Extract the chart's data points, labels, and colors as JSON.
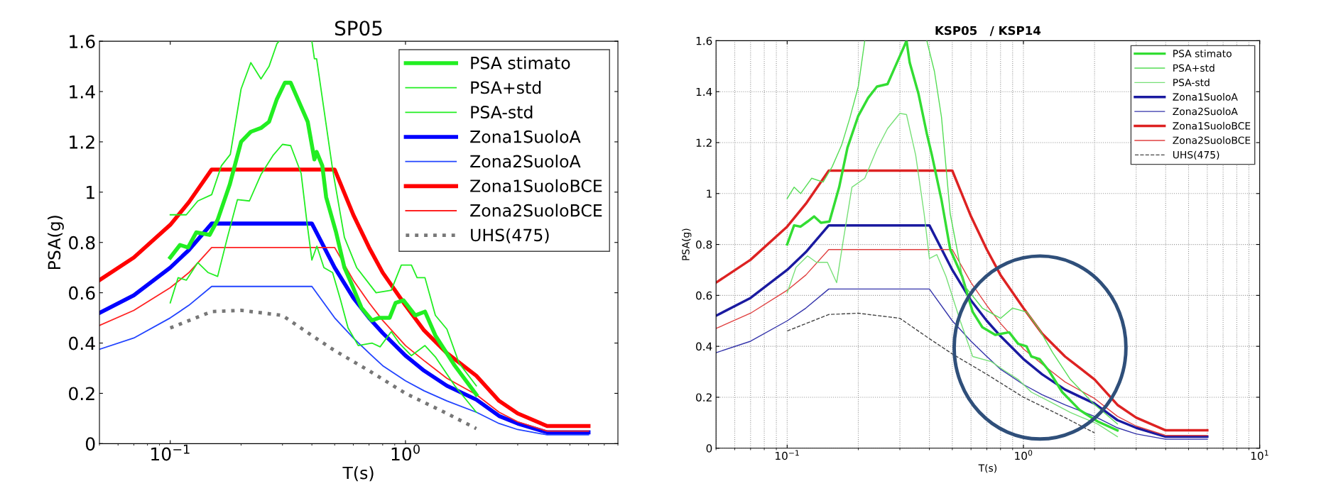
{
  "chart_data": [
    {
      "type": "line",
      "title": "SP05",
      "xlabel": "T(s)",
      "ylabel": "PSA(g)",
      "log": "x",
      "xlim": [
        0.05,
        8
      ],
      "ylim": [
        0,
        1.6
      ],
      "xticks": [
        {
          "value": 0.1,
          "label": "10$^{−1}$"
        },
        {
          "value": 1,
          "label": "10$^{0}$"
        }
      ],
      "yticks": [
        0,
        0.2,
        0.4,
        0.6,
        0.8,
        1,
        1.2,
        1.4,
        1.6
      ],
      "grid": false,
      "legend": "top right",
      "series": [
        {
          "name": "PSA stimato",
          "color": "#22ee22",
          "x": [
            0.1,
            0.11,
            0.119,
            0.129,
            0.147,
            0.159,
            0.179,
            0.2,
            0.22,
            0.243,
            0.263,
            0.284,
            0.307,
            0.325,
            0.36,
            0.384,
            0.41,
            0.419,
            0.443,
            0.46,
            0.507,
            0.55,
            0.59,
            0.65,
            0.72,
            0.77,
            0.856,
            0.908,
            0.98,
            1.1,
            1.21,
            1.34,
            1.62,
            2.0
          ],
          "values": [
            0.74,
            0.79,
            0.78,
            0.84,
            0.83,
            0.89,
            1.03,
            1.2,
            1.24,
            1.255,
            1.28,
            1.37,
            1.435,
            1.435,
            1.34,
            1.28,
            1.13,
            1.16,
            1.105,
            0.98,
            0.84,
            0.7,
            0.635,
            0.54,
            0.49,
            0.5,
            0.5,
            0.56,
            0.57,
            0.51,
            0.525,
            0.43,
            0.31,
            0.195
          ]
        },
        {
          "name": "PSA+std",
          "color": "#22ee22",
          "x": [
            0.1,
            0.117,
            0.131,
            0.15,
            0.165,
            0.18,
            0.2,
            0.22,
            0.243,
            0.263,
            0.284,
            0.29,
            0.35,
            0.4,
            0.41,
            0.419,
            0.45,
            0.49,
            0.55,
            0.62,
            0.75,
            0.87,
            0.96,
            1.06,
            1.12,
            1.21,
            1.34,
            1.5,
            1.69,
            2.0
          ],
          "values": [
            0.91,
            0.91,
            0.965,
            0.99,
            1.105,
            1.15,
            1.41,
            1.515,
            1.45,
            1.5,
            1.59,
            1.6,
            null,
            1.6,
            1.53,
            1.53,
            1.33,
            1.09,
            0.82,
            0.7,
            0.6,
            0.61,
            0.71,
            0.71,
            0.66,
            0.66,
            0.51,
            0.455,
            0.32,
            0.23
          ]
        },
        {
          "name": "PSA-std",
          "color": "#22ee22",
          "x": [
            0.1,
            0.108,
            0.117,
            0.131,
            0.145,
            0.159,
            0.175,
            0.193,
            0.217,
            0.243,
            0.273,
            0.3,
            0.325,
            0.36,
            0.38,
            0.4,
            0.42,
            0.45,
            0.49,
            0.53,
            0.57,
            0.63,
            0.72,
            0.78,
            0.87,
            0.94,
            1.06,
            1.21,
            1.34,
            1.62,
            2.0
          ],
          "values": [
            0.56,
            0.66,
            0.65,
            0.72,
            0.68,
            0.665,
            0.82,
            0.97,
            0.965,
            1.07,
            1.145,
            1.19,
            1.185,
            1.075,
            0.89,
            0.73,
            0.785,
            0.7,
            0.68,
            0.57,
            0.46,
            0.39,
            0.4,
            0.385,
            0.445,
            0.4,
            0.35,
            0.39,
            0.345,
            0.23,
            0.125
          ]
        },
        {
          "name": "Zona1SuoloA",
          "color": "#0000ff",
          "x": [
            0.05,
            0.07,
            0.1,
            0.12,
            0.15,
            0.4,
            0.5,
            0.6,
            0.7,
            0.8,
            1,
            1.2,
            1.5,
            2,
            2.5,
            3,
            4,
            6
          ],
          "values": [
            0.52,
            0.59,
            0.7,
            0.77,
            0.875,
            0.875,
            0.7,
            0.58,
            0.5,
            0.44,
            0.35,
            0.29,
            0.23,
            0.175,
            0.11,
            0.08,
            0.045,
            0.045
          ]
        },
        {
          "name": "Zona2SuoloA",
          "color": "#2244ff",
          "x": [
            0.05,
            0.07,
            0.1,
            0.12,
            0.15,
            0.4,
            0.5,
            0.6,
            0.7,
            0.8,
            1,
            1.2,
            1.5,
            2,
            2.5,
            3,
            4,
            6
          ],
          "values": [
            0.375,
            0.42,
            0.5,
            0.55,
            0.625,
            0.625,
            0.5,
            0.42,
            0.36,
            0.31,
            0.25,
            0.21,
            0.17,
            0.125,
            0.08,
            0.056,
            0.035,
            0.035
          ]
        },
        {
          "name": "Zona1SuoloBCE",
          "color": "#ff0000",
          "x": [
            0.05,
            0.07,
            0.1,
            0.12,
            0.15,
            0.5,
            0.6,
            0.7,
            0.8,
            1,
            1.2,
            1.5,
            2,
            2.5,
            3,
            4,
            6
          ],
          "values": [
            0.65,
            0.74,
            0.87,
            0.96,
            1.09,
            1.09,
            0.91,
            0.78,
            0.68,
            0.55,
            0.45,
            0.36,
            0.27,
            0.17,
            0.12,
            0.07,
            0.07
          ]
        },
        {
          "name": "Zona2SuoloBCE",
          "color": "#ff2222",
          "x": [
            0.05,
            0.07,
            0.1,
            0.12,
            0.15,
            0.5,
            0.6,
            0.7,
            0.8,
            1,
            1.2,
            1.5,
            2,
            2.5,
            3,
            4,
            6
          ],
          "values": [
            0.47,
            0.53,
            0.62,
            0.68,
            0.78,
            0.78,
            0.65,
            0.56,
            0.49,
            0.39,
            0.33,
            0.26,
            0.195,
            0.125,
            0.087,
            0.05,
            0.05
          ]
        },
        {
          "name": "UHS(475)",
          "color": "#777777",
          "line_style": "dotted",
          "x": [
            0.1,
            0.15,
            0.2,
            0.3,
            0.4,
            0.5,
            0.7,
            1,
            1.5,
            2
          ],
          "values": [
            0.46,
            0.525,
            0.53,
            0.51,
            0.43,
            0.37,
            0.29,
            0.2,
            0.12,
            0.06
          ]
        }
      ]
    },
    {
      "type": "line",
      "title": "KSP05   / KSP14",
      "xlabel": "T(s)",
      "ylabel": "PSA(g)",
      "log": "x",
      "xlim": [
        0.05,
        10
      ],
      "ylim": [
        0,
        1.6
      ],
      "xticks": [
        {
          "value": 0.1,
          "label": "10$^{−1}$"
        },
        {
          "value": 1,
          "label": "10$^{0}$"
        },
        {
          "value": 10,
          "label": "10$^{1}$"
        }
      ],
      "yticks": [
        0,
        0.2,
        0.4,
        0.6,
        0.8,
        1,
        1.2,
        1.4,
        1.6
      ],
      "grid": true,
      "legend": "top right",
      "series": [
        {
          "name": "PSA stimato",
          "color": "#33dd33",
          "x": [
            0.1,
            0.107,
            0.114,
            0.122,
            0.13,
            0.139,
            0.151,
            0.166,
            0.18,
            0.2,
            0.22,
            0.24,
            0.266,
            0.284,
            0.31,
            0.32,
            0.33,
            0.36,
            0.39,
            0.41,
            0.45,
            0.49,
            0.55,
            0.61,
            0.67,
            0.76,
            0.87,
            0.95,
            1.03,
            1.08,
            1.17,
            1.28,
            1.46,
            1.73,
            2.06,
            2.5
          ],
          "values": [
            0.8,
            0.875,
            0.87,
            0.89,
            0.91,
            0.885,
            0.89,
            1.025,
            1.18,
            1.305,
            1.375,
            1.42,
            1.43,
            1.49,
            1.57,
            1.6,
            1.515,
            1.39,
            1.235,
            1.15,
            0.975,
            0.78,
            0.675,
            0.535,
            0.475,
            0.445,
            0.455,
            0.41,
            0.4,
            0.36,
            0.35,
            0.305,
            0.22,
            0.15,
            0.105,
            0.07
          ]
        },
        {
          "name": "PSA+std",
          "color": "#55dd55",
          "x": [
            0.1,
            0.107,
            0.114,
            0.127,
            0.142,
            0.155,
            0.17,
            0.184,
            0.2,
            0.213,
            0.3,
            0.39,
            0.42,
            0.45,
            0.49,
            0.56,
            0.67,
            0.8,
            0.9,
            1.03,
            1.17,
            1.33,
            1.58,
            1.98,
            2.5
          ],
          "values": [
            0.98,
            1.025,
            1.0,
            1.06,
            1.045,
            1.105,
            1.19,
            1.295,
            1.42,
            1.6,
            null,
            1.6,
            1.48,
            1.3,
            0.92,
            0.64,
            0.55,
            0.51,
            0.55,
            0.535,
            0.465,
            0.375,
            0.27,
            0.175,
            0.095
          ]
        },
        {
          "name": "PSA-std",
          "color": "#77e077",
          "x": [
            0.1,
            0.109,
            0.122,
            0.133,
            0.148,
            0.162,
            0.172,
            0.188,
            0.213,
            0.24,
            0.266,
            0.3,
            0.32,
            0.35,
            0.38,
            0.4,
            0.43,
            0.47,
            0.54,
            0.61,
            0.73,
            0.83,
            0.95,
            1.08,
            1.28,
            1.58,
            2.06,
            2.5
          ],
          "values": [
            0.61,
            0.71,
            0.755,
            0.73,
            0.73,
            0.65,
            0.805,
            1.025,
            1.06,
            1.175,
            1.255,
            1.315,
            1.31,
            1.15,
            0.92,
            0.745,
            0.76,
            0.675,
            0.5,
            0.36,
            0.34,
            0.305,
            0.27,
            0.22,
            0.185,
            0.14,
            0.095,
            0.045
          ]
        },
        {
          "name": "Zona1SuoloA",
          "color": "#1a1aa0",
          "x": [
            0.05,
            0.07,
            0.1,
            0.12,
            0.15,
            0.4,
            0.5,
            0.6,
            0.7,
            0.8,
            1,
            1.2,
            1.5,
            2,
            2.5,
            3,
            4,
            6
          ],
          "values": [
            0.52,
            0.59,
            0.7,
            0.77,
            0.875,
            0.875,
            0.7,
            0.58,
            0.5,
            0.44,
            0.35,
            0.29,
            0.23,
            0.175,
            0.11,
            0.08,
            0.045,
            0.045
          ]
        },
        {
          "name": "Zona2SuoloA",
          "color": "#3333aa",
          "x": [
            0.05,
            0.07,
            0.1,
            0.12,
            0.15,
            0.4,
            0.5,
            0.6,
            0.7,
            0.8,
            1,
            1.2,
            1.5,
            2,
            2.5,
            3,
            4,
            6
          ],
          "values": [
            0.375,
            0.42,
            0.5,
            0.55,
            0.625,
            0.625,
            0.5,
            0.42,
            0.36,
            0.31,
            0.25,
            0.21,
            0.17,
            0.125,
            0.08,
            0.056,
            0.035,
            0.035
          ]
        },
        {
          "name": "Zona1SuoloBCE",
          "color": "#dd2222",
          "x": [
            0.05,
            0.07,
            0.1,
            0.12,
            0.15,
            0.5,
            0.6,
            0.7,
            0.8,
            1,
            1.2,
            1.5,
            2,
            2.5,
            3,
            4,
            6
          ],
          "values": [
            0.65,
            0.74,
            0.87,
            0.96,
            1.09,
            1.09,
            0.91,
            0.78,
            0.68,
            0.55,
            0.45,
            0.36,
            0.27,
            0.17,
            0.12,
            0.07,
            0.07
          ]
        },
        {
          "name": "Zona2SuoloBCE",
          "color": "#e04040",
          "x": [
            0.05,
            0.07,
            0.1,
            0.12,
            0.15,
            0.5,
            0.6,
            0.7,
            0.8,
            1,
            1.2,
            1.5,
            2,
            2.5,
            3,
            4,
            6
          ],
          "values": [
            0.47,
            0.53,
            0.62,
            0.68,
            0.78,
            0.78,
            0.65,
            0.56,
            0.49,
            0.39,
            0.33,
            0.26,
            0.195,
            0.125,
            0.087,
            0.05,
            0.05
          ]
        },
        {
          "name": "UHS(475)",
          "color": "#444444",
          "line_style": "dashed",
          "x": [
            0.1,
            0.15,
            0.2,
            0.3,
            0.4,
            0.5,
            0.7,
            1,
            1.5,
            2
          ],
          "values": [
            0.46,
            0.525,
            0.53,
            0.51,
            0.43,
            0.37,
            0.29,
            0.2,
            0.12,
            0.06
          ]
        }
      ]
    }
  ]
}
